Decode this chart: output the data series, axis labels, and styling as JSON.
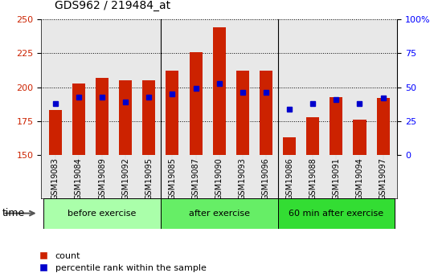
{
  "title": "GDS962 / 219484_at",
  "categories": [
    "GSM19083",
    "GSM19084",
    "GSM19089",
    "GSM19092",
    "GSM19095",
    "GSM19085",
    "GSM19087",
    "GSM19090",
    "GSM19093",
    "GSM19096",
    "GSM19086",
    "GSM19088",
    "GSM19091",
    "GSM19094",
    "GSM19097"
  ],
  "bar_values": [
    183,
    203,
    207,
    205,
    205,
    212,
    226,
    244,
    212,
    212,
    163,
    178,
    193,
    176,
    192
  ],
  "dot_values": [
    188,
    193,
    193,
    189,
    193,
    195,
    199,
    203,
    196,
    196,
    184,
    188,
    191,
    188,
    192
  ],
  "bar_bottom": 150,
  "ylim_left": [
    150,
    250
  ],
  "ylim_right": [
    0,
    100
  ],
  "yticks_left": [
    150,
    175,
    200,
    225,
    250
  ],
  "yticks_right": [
    0,
    25,
    50,
    75,
    100
  ],
  "groups": [
    {
      "label": "before exercise",
      "start": 0,
      "end": 5,
      "color": "#aaffaa"
    },
    {
      "label": "after exercise",
      "start": 5,
      "end": 10,
      "color": "#66ee66"
    },
    {
      "label": "60 min after exercise",
      "start": 10,
      "end": 15,
      "color": "#33dd33"
    }
  ],
  "bar_color": "#cc2200",
  "dot_color": "#0000cc",
  "bar_width": 0.55,
  "plot_bg_color": "#e8e8e8",
  "title_fontsize": 10,
  "tick_label_fontsize": 7,
  "legend_items": [
    "count",
    "percentile rank within the sample"
  ],
  "group_box_colors": [
    "#aaffaa",
    "#66ee66",
    "#33dd33"
  ]
}
